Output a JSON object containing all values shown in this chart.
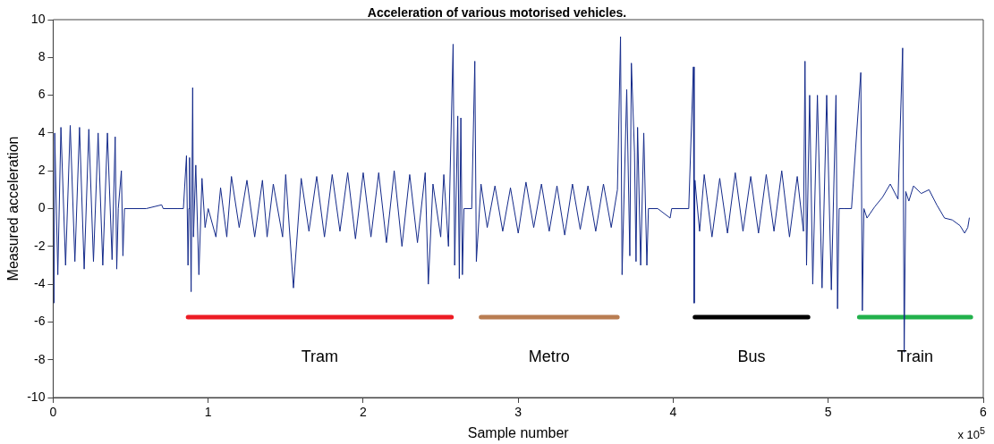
{
  "chart_data": {
    "type": "line",
    "title": "Acceleration of various motorised vehicles.",
    "xlabel": "Sample number",
    "ylabel": "Measured acceleration",
    "annotations": [
      "x 10$^{5}$"
    ],
    "xlim": [
      0,
      6
    ],
    "xticks": [
      0,
      1,
      2,
      3,
      4,
      5,
      6
    ],
    "ylim": [
      -10,
      10
    ],
    "yticks": [
      -10,
      -8,
      -6,
      -4,
      -2,
      0,
      2,
      4,
      6,
      8,
      10
    ],
    "grid": false,
    "legend": false,
    "series": [
      {
        "color": "#142a8a",
        "x": [
          0,
          0.005,
          0.01,
          0.03,
          0.05,
          0.08,
          0.11,
          0.14,
          0.17,
          0.2,
          0.23,
          0.26,
          0.29,
          0.32,
          0.35,
          0.38,
          0.4,
          0.41,
          0.42,
          0.44,
          0.45,
          0.46,
          0.6,
          0.7,
          0.71,
          0.8,
          0.84,
          0.86,
          0.87,
          0.875,
          0.88,
          0.89,
          0.9,
          0.905,
          0.92,
          0.94,
          0.96,
          0.98,
          1.0,
          1.05,
          1.08,
          1.12,
          1.15,
          1.2,
          1.25,
          1.3,
          1.35,
          1.38,
          1.42,
          1.48,
          1.5,
          1.55,
          1.6,
          1.65,
          1.7,
          1.75,
          1.8,
          1.85,
          1.9,
          1.95,
          2.0,
          2.05,
          2.1,
          2.15,
          2.2,
          2.25,
          2.3,
          2.35,
          2.4,
          2.42,
          2.45,
          2.5,
          2.52,
          2.55,
          2.58,
          2.59,
          2.61,
          2.62,
          2.63,
          2.64,
          2.65,
          2.7,
          2.72,
          2.73,
          2.76,
          2.8,
          2.85,
          2.9,
          2.95,
          3.0,
          3.05,
          3.1,
          3.15,
          3.2,
          3.25,
          3.3,
          3.35,
          3.4,
          3.45,
          3.5,
          3.55,
          3.6,
          3.64,
          3.66,
          3.67,
          3.7,
          3.72,
          3.73,
          3.75,
          3.76,
          3.77,
          3.79,
          3.81,
          3.83,
          3.84,
          3.9,
          3.98,
          3.99,
          4.1,
          4.13,
          4.135,
          4.14,
          4.17,
          4.2,
          4.25,
          4.3,
          4.35,
          4.4,
          4.45,
          4.5,
          4.55,
          4.6,
          4.65,
          4.7,
          4.75,
          4.8,
          4.84,
          4.85,
          4.86,
          4.88,
          4.9,
          4.93,
          4.96,
          4.99,
          5.02,
          5.05,
          5.06,
          5.07,
          5.1,
          5.15,
          5.21,
          5.22,
          5.23,
          5.25,
          5.3,
          5.35,
          5.4,
          5.45,
          5.48,
          5.49,
          5.5,
          5.52,
          5.55,
          5.6,
          5.65,
          5.7,
          5.75,
          5.8,
          5.85,
          5.88,
          5.9,
          5.91
        ],
        "values": [
          0,
          -5,
          4,
          -3.5,
          4.3,
          -3,
          4.4,
          -2.8,
          4.3,
          -3.2,
          4.2,
          -2.8,
          4,
          -3,
          4,
          -2.7,
          3.8,
          -3.2,
          0,
          2,
          -2.5,
          0,
          0,
          0.2,
          0,
          0,
          0,
          2.8,
          -3,
          0,
          2.7,
          -4.4,
          6.4,
          -1.5,
          2.3,
          -3.5,
          1.6,
          -1,
          0,
          -1.5,
          1.1,
          -1.5,
          1.7,
          -1,
          1.5,
          -1.5,
          1.5,
          -1.5,
          1.3,
          -1.5,
          1.8,
          -4.2,
          1.6,
          -1.2,
          1.7,
          -1.5,
          1.8,
          -1.2,
          1.9,
          -1.6,
          1.9,
          -1.5,
          1.9,
          -1.8,
          2,
          -2,
          1.8,
          -1.8,
          1.9,
          -4,
          1.3,
          -1.5,
          1.8,
          -2,
          8.7,
          -3,
          4.9,
          -3.7,
          4.8,
          -3.5,
          0,
          0,
          7.8,
          -2.8,
          1.3,
          -1,
          1.2,
          -1.2,
          1.1,
          -1.3,
          1.4,
          -1,
          1.3,
          -1.2,
          1.2,
          -1.4,
          1.3,
          -1.1,
          1.2,
          -1.2,
          1.3,
          -1,
          1,
          9.1,
          -3.5,
          6.3,
          -2.5,
          7.7,
          3,
          -2.8,
          4.3,
          -3,
          4,
          -3,
          0,
          0,
          -0.5,
          0,
          0,
          7.5,
          -5,
          1.5,
          -1.2,
          1.8,
          -1.5,
          1.6,
          -1.3,
          1.9,
          -1.2,
          1.7,
          -1.3,
          1.8,
          -1.2,
          2,
          -1.5,
          1.7,
          -1.2,
          7.8,
          -3,
          6,
          -4,
          6,
          -4.2,
          6,
          -4.3,
          6,
          -5.3,
          0,
          0,
          0,
          7.2,
          -5.4,
          0,
          -0.5,
          0.1,
          0.6,
          1.3,
          0.5,
          8.5,
          -7.6,
          0.9,
          0.4,
          1.2,
          0.8,
          1,
          0.2,
          -0.5,
          -0.6,
          -0.9,
          -1.3,
          -1,
          -0.5
        ]
      },
      {
        "type": "line",
        "name": "Tram",
        "color": "#ed1c24",
        "x": [
          0.87,
          2.57
        ],
        "values": [
          -5.75,
          -5.75
        ]
      },
      {
        "type": "line",
        "name": "Metro",
        "color": "#b97d52",
        "x": [
          2.76,
          3.64
        ],
        "values": [
          -5.75,
          -5.75
        ]
      },
      {
        "type": "line",
        "name": "Bus",
        "color": "#000000",
        "x": [
          4.14,
          4.87
        ],
        "values": [
          -5.75,
          -5.75
        ]
      },
      {
        "type": "line",
        "name": "Train",
        "color": "#22b14c",
        "x": [
          5.2,
          5.92
        ],
        "values": [
          -5.75,
          -5.75
        ]
      }
    ]
  }
}
